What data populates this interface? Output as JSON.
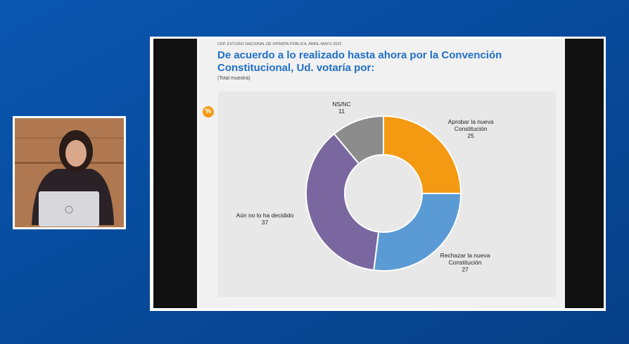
{
  "chart_data": {
    "type": "pie",
    "source": "CEP, ESTUDIO NACIONAL DE OPINIÓN PÚBLICA, ABRIL-MAYO 2022",
    "title": "De acuerdo a lo realizado hasta ahora por la Convención Constitucional, Ud. votaría por:",
    "subtitle": "(Total muestra)",
    "badge": "%",
    "categories": [
      "Aprobar la nueva Constitución",
      "Rechazar la nueva Constitución",
      "Aún no lo ha decidido",
      "NS/NC"
    ],
    "values": [
      25,
      27,
      37,
      11
    ],
    "colors": [
      "#f39a12",
      "#5b9bd5",
      "#7a67a0",
      "#8c8c8c"
    ],
    "donut": true
  }
}
